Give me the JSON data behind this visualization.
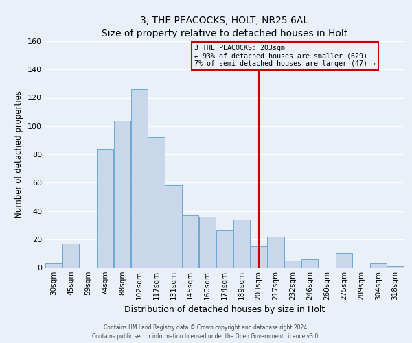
{
  "title": "3, THE PEACOCKS, HOLT, NR25 6AL",
  "subtitle": "Size of property relative to detached houses in Holt",
  "xlabel": "Distribution of detached houses by size in Holt",
  "ylabel": "Number of detached properties",
  "bar_color": "#c8d8ea",
  "bar_edge_color": "#6aaad4",
  "categories": [
    "30sqm",
    "45sqm",
    "59sqm",
    "74sqm",
    "88sqm",
    "102sqm",
    "117sqm",
    "131sqm",
    "145sqm",
    "160sqm",
    "174sqm",
    "189sqm",
    "203sqm",
    "217sqm",
    "232sqm",
    "246sqm",
    "260sqm",
    "275sqm",
    "289sqm",
    "304sqm",
    "318sqm"
  ],
  "values": [
    3,
    17,
    0,
    84,
    104,
    126,
    92,
    58,
    37,
    36,
    26,
    34,
    15,
    22,
    5,
    6,
    0,
    10,
    0,
    3,
    1
  ],
  "ylim": [
    0,
    160
  ],
  "yticks": [
    0,
    20,
    40,
    60,
    80,
    100,
    120,
    140,
    160
  ],
  "vline_x_idx": 12,
  "vline_color": "#cc0000",
  "annotation_title": "3 THE PEACOCKS: 203sqm",
  "annotation_line1": "← 93% of detached houses are smaller (629)",
  "annotation_line2": "7% of semi-detached houses are larger (47) →",
  "annotation_box_edge": "#cc0000",
  "footer1": "Contains HM Land Registry data © Crown copyright and database right 2024.",
  "footer2": "Contains public sector information licensed under the Open Government Licence v3.0.",
  "background_color": "#eaf0f7",
  "grid_color": "#ffffff"
}
